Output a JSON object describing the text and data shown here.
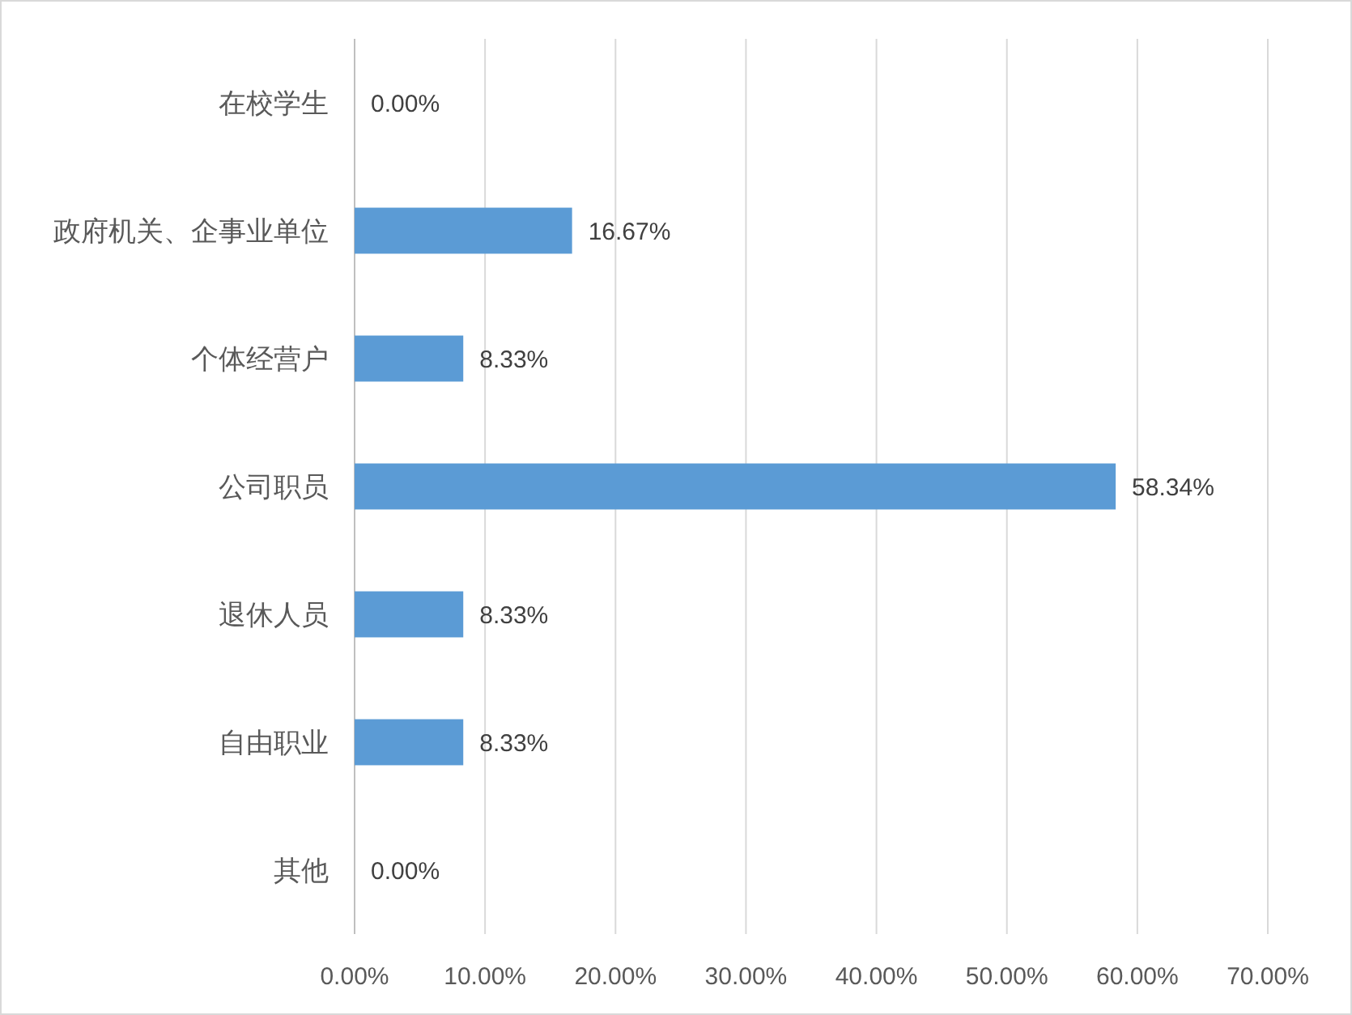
{
  "chart_data": {
    "type": "bar",
    "orientation": "horizontal",
    "categories": [
      "在校学生",
      "政府机关、企事业单位",
      "个体经营户",
      "公司职员",
      "退休人员",
      "自由职业",
      "其他"
    ],
    "values": [
      0,
      16.67,
      8.33,
      58.34,
      8.33,
      8.33,
      0
    ],
    "value_labels": [
      "0.00%",
      "16.67%",
      "8.33%",
      "58.34%",
      "8.33%",
      "8.33%",
      "0.00%"
    ],
    "color": "#5b9bd5",
    "xlim": [
      0,
      70
    ],
    "xticks": [
      {
        "value": 0,
        "label": "0.00%"
      },
      {
        "value": 10,
        "label": "10.00%"
      },
      {
        "value": 20,
        "label": "20.00%"
      },
      {
        "value": 30,
        "label": "30.00%"
      },
      {
        "value": 40,
        "label": "40.00%"
      },
      {
        "value": 50,
        "label": "50.00%"
      },
      {
        "value": 60,
        "label": "60.00%"
      },
      {
        "value": 70,
        "label": "70.00%"
      }
    ],
    "grid": "x"
  }
}
